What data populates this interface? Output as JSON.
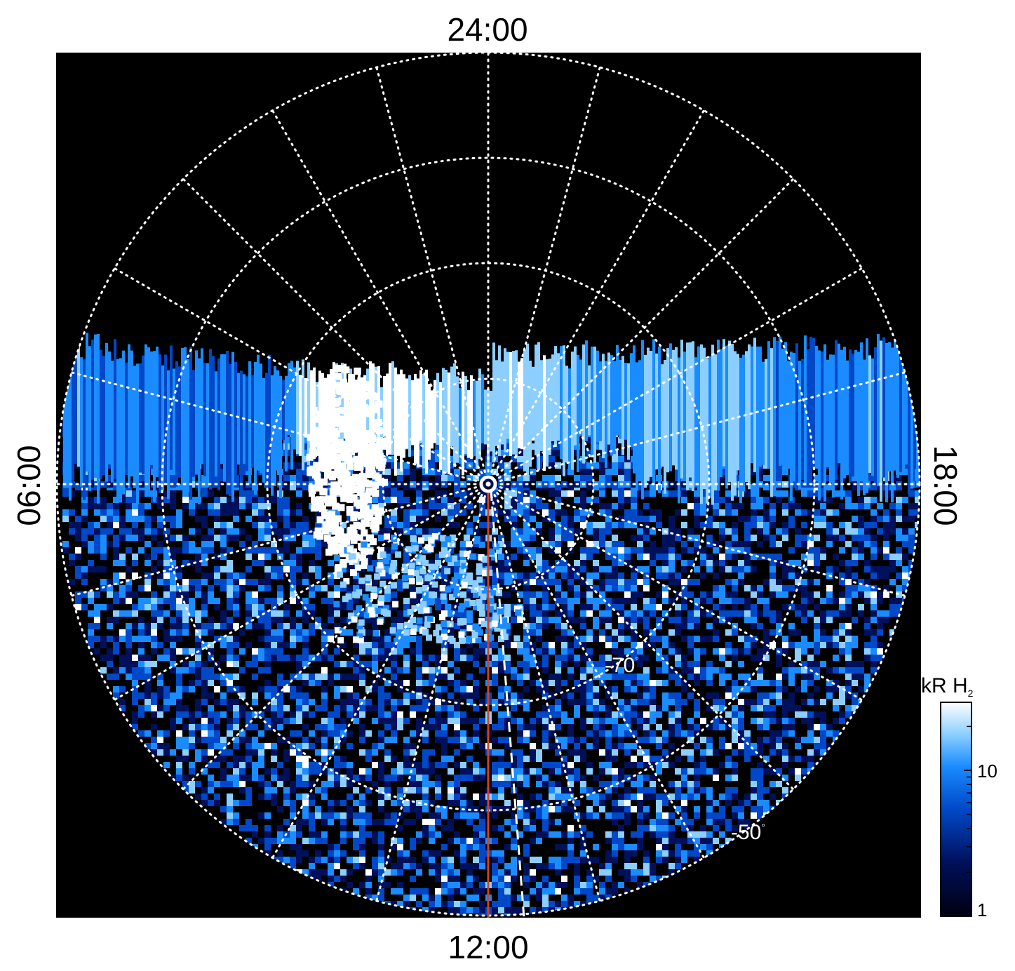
{
  "plot": {
    "local_time_labels": {
      "top": "24:00",
      "bottom": "12:00",
      "left": "06:00",
      "right": "18:00"
    },
    "latitude_labels": [
      {
        "text": "-70",
        "unit": "°"
      },
      {
        "text": "-50",
        "unit": "°"
      }
    ],
    "colors": {
      "background": "#000000",
      "frame": "#ffffff",
      "grid": "#ffffff",
      "meridian_line": "#d8401c",
      "colormap": [
        "#000010",
        "#00105a",
        "#0048c8",
        "#1a8cff",
        "#8ccfff",
        "#ffffff"
      ]
    },
    "grid": "dotted"
  },
  "colorbar": {
    "title_main": "kR H",
    "title_sub": "2",
    "ticks": [
      "10",
      "1"
    ],
    "scale": "log"
  }
}
